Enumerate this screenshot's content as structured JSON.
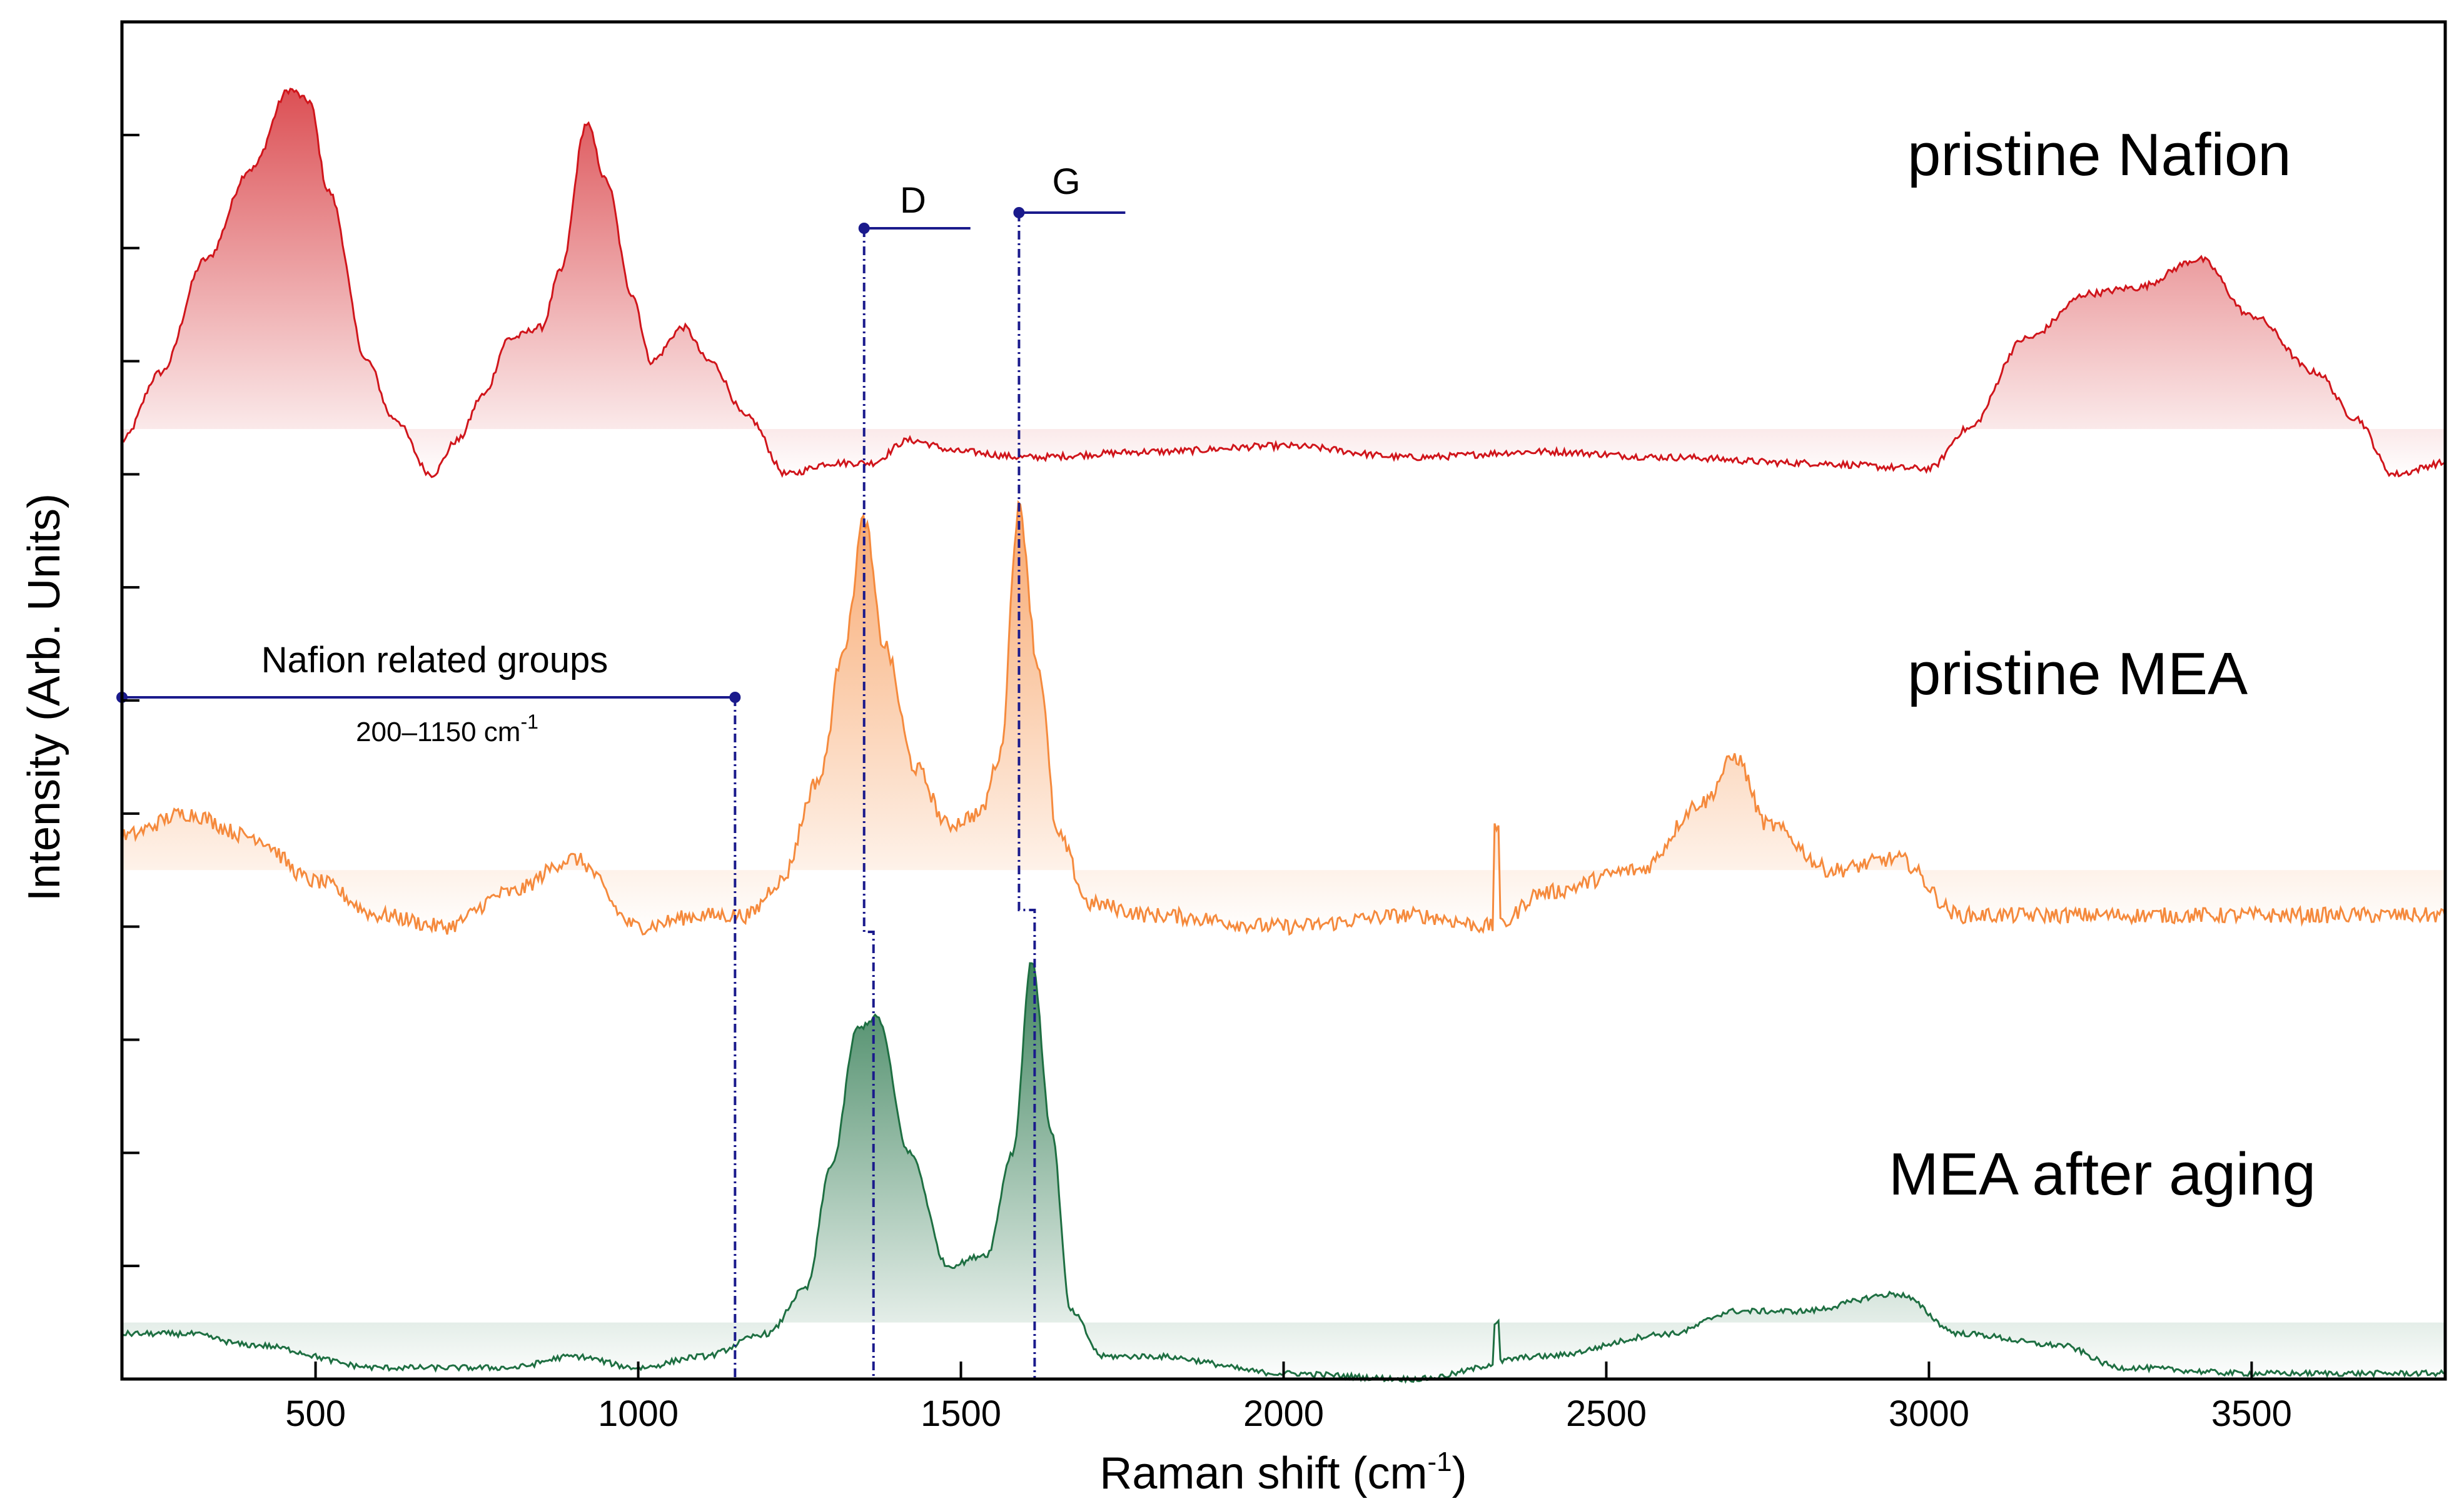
{
  "chart_data": {
    "type": "line",
    "title": "",
    "xlabel": "Raman shift (cm",
    "xlabel_sup": "-1",
    "xlabel_close": ")",
    "ylabel": "Intensity (Arb. Units)",
    "xlim": [
      200,
      3800
    ],
    "ylim": [
      0,
      12
    ],
    "xticks": [
      500,
      1000,
      1500,
      2000,
      2500,
      3000,
      3500
    ],
    "grid": false,
    "legend": "none",
    "series": [
      {
        "name": "pristine Nafion",
        "color": "#d0151b",
        "fill_color": "#d0151b",
        "baseline": 8,
        "points": [
          [
            200,
            8.3
          ],
          [
            260,
            8.9
          ],
          [
            330,
            9.9
          ],
          [
            400,
            10.7
          ],
          [
            460,
            11.4
          ],
          [
            490,
            11.3
          ],
          [
            520,
            10.5
          ],
          [
            580,
            9.0
          ],
          [
            620,
            8.5
          ],
          [
            680,
            8.0
          ],
          [
            720,
            8.3
          ],
          [
            760,
            8.7
          ],
          [
            800,
            9.2
          ],
          [
            850,
            9.3
          ],
          [
            880,
            9.8
          ],
          [
            920,
            11.1
          ],
          [
            950,
            10.6
          ],
          [
            990,
            9.6
          ],
          [
            1020,
            9.0
          ],
          [
            1070,
            9.3
          ],
          [
            1110,
            9.0
          ],
          [
            1170,
            8.5
          ],
          [
            1230,
            8.0
          ],
          [
            1300,
            8.1
          ],
          [
            1360,
            8.1
          ],
          [
            1420,
            8.3
          ],
          [
            1500,
            8.2
          ],
          [
            1600,
            8.15
          ],
          [
            1800,
            8.2
          ],
          [
            2000,
            8.25
          ],
          [
            2200,
            8.15
          ],
          [
            2400,
            8.2
          ],
          [
            2600,
            8.15
          ],
          [
            2800,
            8.1
          ],
          [
            3000,
            8.05
          ],
          [
            3060,
            8.4
          ],
          [
            3150,
            9.2
          ],
          [
            3250,
            9.6
          ],
          [
            3320,
            9.65
          ],
          [
            3420,
            9.9
          ],
          [
            3500,
            9.4
          ],
          [
            3600,
            8.9
          ],
          [
            3660,
            8.5
          ],
          [
            3720,
            8.0
          ],
          [
            3800,
            8.1
          ]
        ]
      },
      {
        "name": "pristine MEA",
        "color": "#f58a3d",
        "fill_color": "#f58a3d",
        "baseline": 4,
        "points": [
          [
            200,
            4.8
          ],
          [
            300,
            5.0
          ],
          [
            400,
            4.8
          ],
          [
            500,
            4.4
          ],
          [
            600,
            4.1
          ],
          [
            700,
            4.0
          ],
          [
            800,
            4.3
          ],
          [
            900,
            4.6
          ],
          [
            1000,
            4.0
          ],
          [
            1100,
            4.1
          ],
          [
            1170,
            4.1
          ],
          [
            1220,
            4.4
          ],
          [
            1280,
            5.3
          ],
          [
            1320,
            6.5
          ],
          [
            1350,
            7.6
          ],
          [
            1380,
            6.5
          ],
          [
            1430,
            5.4
          ],
          [
            1480,
            4.9
          ],
          [
            1530,
            5.0
          ],
          [
            1560,
            5.5
          ],
          [
            1590,
            7.7
          ],
          [
            1620,
            6.3
          ],
          [
            1650,
            4.8
          ],
          [
            1700,
            4.2
          ],
          [
            1800,
            4.1
          ],
          [
            2000,
            4.0
          ],
          [
            2200,
            4.1
          ],
          [
            2330,
            4.0
          ],
          [
            2400,
            4.3
          ],
          [
            2550,
            4.5
          ],
          [
            2650,
            5.1
          ],
          [
            2700,
            5.5
          ],
          [
            2750,
            4.9
          ],
          [
            2850,
            4.5
          ],
          [
            2950,
            4.6
          ],
          [
            3050,
            4.1
          ],
          [
            3300,
            4.1
          ],
          [
            3500,
            4.1
          ],
          [
            3800,
            4.1
          ]
        ]
      },
      {
        "name": "MEA after aging",
        "color": "#1e6f42",
        "fill_color": "#1e6f42",
        "baseline": 0,
        "points": [
          [
            200,
            0.4
          ],
          [
            300,
            0.4
          ],
          [
            400,
            0.3
          ],
          [
            600,
            0.1
          ],
          [
            800,
            0.1
          ],
          [
            900,
            0.2
          ],
          [
            1000,
            0.1
          ],
          [
            1100,
            0.2
          ],
          [
            1200,
            0.4
          ],
          [
            1260,
            0.8
          ],
          [
            1300,
            1.9
          ],
          [
            1340,
            3.1
          ],
          [
            1370,
            3.2
          ],
          [
            1420,
            2.0
          ],
          [
            1480,
            1.0
          ],
          [
            1540,
            1.1
          ],
          [
            1580,
            2.0
          ],
          [
            1610,
            3.7
          ],
          [
            1640,
            2.2
          ],
          [
            1670,
            0.6
          ],
          [
            1720,
            0.2
          ],
          [
            1800,
            0.2
          ],
          [
            2000,
            0.05
          ],
          [
            2200,
            0.0
          ],
          [
            2400,
            0.2
          ],
          [
            2600,
            0.4
          ],
          [
            2700,
            0.6
          ],
          [
            2800,
            0.6
          ],
          [
            2950,
            0.75
          ],
          [
            3050,
            0.4
          ],
          [
            3200,
            0.3
          ],
          [
            3300,
            0.1
          ],
          [
            3500,
            0.05
          ],
          [
            3800,
            0.05
          ]
        ]
      }
    ],
    "annotations": {
      "d_label": "D",
      "d_position_x": 1350,
      "g_label": "G",
      "g_position_x": 1590,
      "nafion_range_label": "Nafion related groups",
      "nafion_range_sub": "200–1150 cm",
      "nafion_range_sup": "-1",
      "nafion_range_x": [
        200,
        1150
      ],
      "spike_x": 2330,
      "marker_color": "#1a1a8c"
    }
  }
}
